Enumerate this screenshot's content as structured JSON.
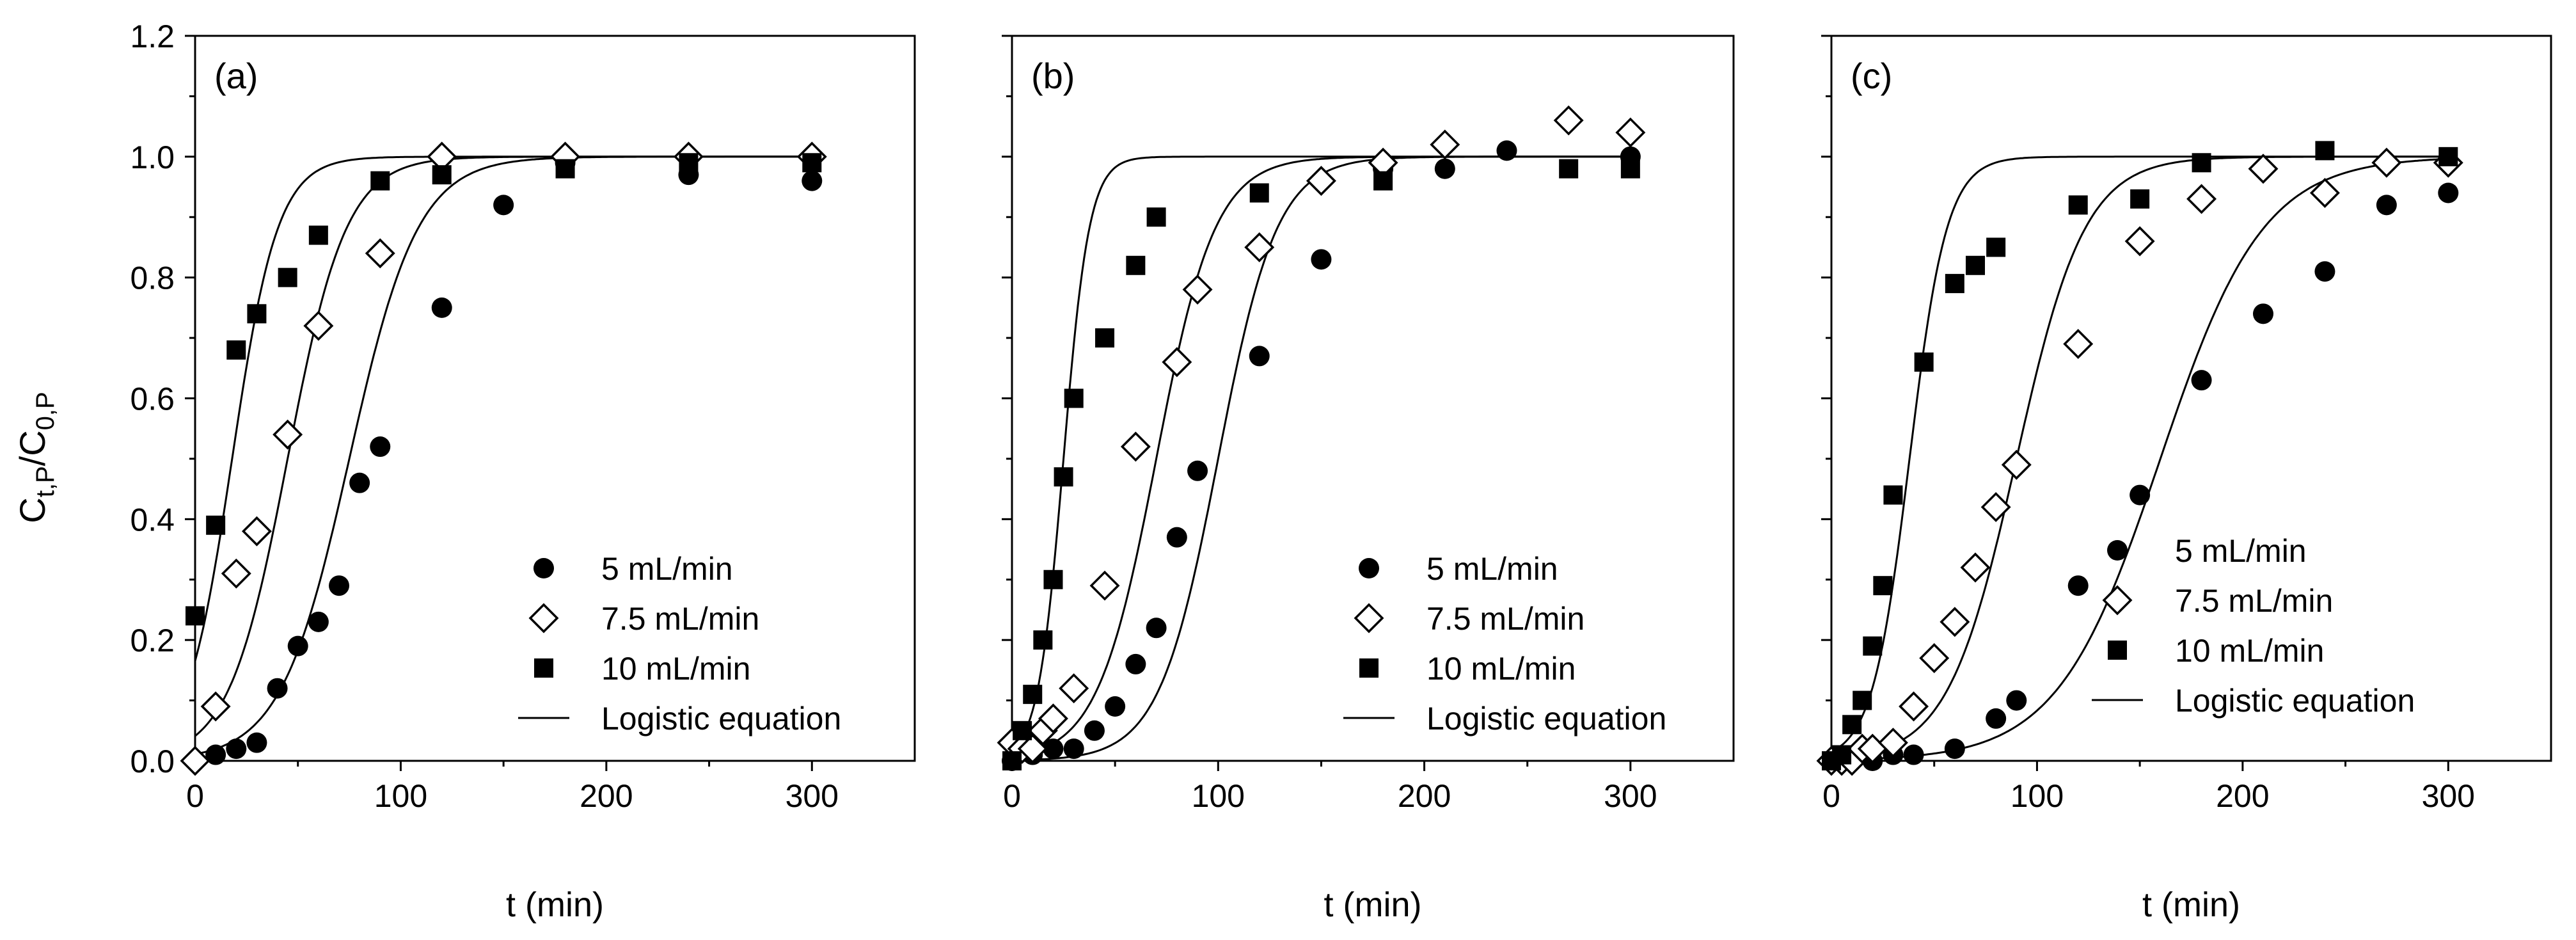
{
  "y_axis_label": {
    "main": "C",
    "sub1": "t,P",
    "mid": "/C",
    "sub2": "0,P"
  },
  "chart_data": [
    {
      "type": "scatter",
      "panel_label": "(a)",
      "xlabel": "t (min)",
      "ylabel": "Ct,P/C0,P",
      "xlim": [
        0,
        350
      ],
      "ylim": [
        0,
        1.2
      ],
      "xticks": [
        0,
        100,
        200,
        300
      ],
      "yticks": [
        0.0,
        0.2,
        0.4,
        0.6,
        0.8,
        1.0,
        1.2
      ],
      "ytick_labels": [
        "0.0",
        "0.2",
        "0.4",
        "0.6",
        "0.8",
        "1.0",
        "1.2"
      ],
      "legend_position": "bottom-right",
      "series": [
        {
          "name": "5 mL/min",
          "marker": "circle-filled",
          "x": [
            0,
            10,
            20,
            30,
            40,
            50,
            60,
            70,
            80,
            90,
            120,
            150,
            180,
            240,
            300
          ],
          "y": [
            0.0,
            0.01,
            0.02,
            0.03,
            0.12,
            0.19,
            0.23,
            0.29,
            0.46,
            0.52,
            0.75,
            0.92,
            0.99,
            0.97,
            0.96
          ]
        },
        {
          "name": "7.5 mL/min",
          "marker": "diamond-open",
          "x": [
            0,
            10,
            20,
            30,
            45,
            60,
            90,
            120,
            180,
            240,
            300
          ],
          "y": [
            0.0,
            0.09,
            0.31,
            0.38,
            0.54,
            0.72,
            0.84,
            1.0,
            1.0,
            1.0,
            1.0
          ]
        },
        {
          "name": "10 mL/min",
          "marker": "square-filled",
          "x": [
            0,
            10,
            20,
            30,
            45,
            60,
            90,
            120,
            180,
            240,
            300
          ],
          "y": [
            0.24,
            0.39,
            0.68,
            0.74,
            0.8,
            0.87,
            0.96,
            0.97,
            0.98,
            0.99,
            0.99
          ]
        },
        {
          "name": "Logistic equation",
          "marker": "line",
          "curves": [
            {
              "k": 0.06,
              "t50": 75
            },
            {
              "k": 0.07,
              "t50": 45
            },
            {
              "k": 0.09,
              "t50": 18
            }
          ]
        }
      ]
    },
    {
      "type": "scatter",
      "panel_label": "(b)",
      "xlabel": "t (min)",
      "ylabel": "Ct,P/C0,P",
      "xlim": [
        0,
        350
      ],
      "ylim": [
        0,
        1.2
      ],
      "xticks": [
        0,
        100,
        200,
        300
      ],
      "yticks": [
        0.0,
        0.2,
        0.4,
        0.6,
        0.8,
        1.0,
        1.2
      ],
      "ytick_labels": [],
      "legend_position": "bottom-right",
      "series": [
        {
          "name": "5 mL/min",
          "marker": "circle-filled",
          "x": [
            0,
            10,
            20,
            30,
            40,
            50,
            60,
            70,
            80,
            90,
            120,
            150,
            180,
            210,
            240,
            300
          ],
          "y": [
            0.0,
            0.01,
            0.02,
            0.02,
            0.05,
            0.09,
            0.16,
            0.22,
            0.37,
            0.48,
            0.67,
            0.83,
            0.98,
            0.98,
            1.01,
            1.0
          ]
        },
        {
          "name": "7.5 mL/min",
          "marker": "diamond-open",
          "x": [
            0,
            5,
            10,
            15,
            20,
            30,
            45,
            60,
            80,
            90,
            120,
            150,
            180,
            210,
            270,
            300
          ],
          "y": [
            0.03,
            0.02,
            0.02,
            0.05,
            0.07,
            0.12,
            0.29,
            0.52,
            0.66,
            0.78,
            0.85,
            0.96,
            0.99,
            1.02,
            1.06,
            1.04
          ]
        },
        {
          "name": "10 mL/min",
          "marker": "square-filled",
          "x": [
            0,
            5,
            10,
            15,
            20,
            25,
            30,
            45,
            60,
            70,
            120,
            180,
            270,
            300
          ],
          "y": [
            0.0,
            0.05,
            0.11,
            0.2,
            0.3,
            0.47,
            0.6,
            0.7,
            0.82,
            0.9,
            0.94,
            0.96,
            0.98,
            0.98
          ]
        },
        {
          "name": "Logistic equation",
          "marker": "line",
          "curves": [
            {
              "k": 0.07,
              "t50": 100
            },
            {
              "k": 0.07,
              "t50": 70
            },
            {
              "k": 0.16,
              "t50": 25
            }
          ]
        }
      ]
    },
    {
      "type": "scatter",
      "panel_label": "(c)",
      "xlabel": "t (min)",
      "ylabel": "Ct,P/C0,P",
      "xlim": [
        0,
        350
      ],
      "ylim": [
        0,
        1.2
      ],
      "xticks": [
        0,
        100,
        200,
        300
      ],
      "yticks": [
        0.0,
        0.2,
        0.4,
        0.6,
        0.8,
        1.0,
        1.2
      ],
      "ytick_labels": [],
      "legend_position": "bottom-right",
      "series": [
        {
          "name": "5 mL/min",
          "marker": "circle-filled",
          "x": [
            0,
            10,
            20,
            30,
            40,
            60,
            80,
            90,
            120,
            150,
            180,
            210,
            240,
            270,
            300
          ],
          "y": [
            0.0,
            0.0,
            0.0,
            0.01,
            0.01,
            0.02,
            0.07,
            0.1,
            0.29,
            0.44,
            0.63,
            0.74,
            0.81,
            0.92,
            0.94
          ]
        },
        {
          "name": "7.5 mL/min",
          "marker": "diamond-open",
          "x": [
            0,
            5,
            10,
            15,
            20,
            30,
            40,
            50,
            60,
            70,
            80,
            90,
            120,
            150,
            180,
            210,
            240,
            270,
            300
          ],
          "y": [
            0.0,
            0.0,
            0.0,
            0.02,
            0.02,
            0.03,
            0.09,
            0.17,
            0.23,
            0.32,
            0.42,
            0.49,
            0.69,
            0.86,
            0.93,
            0.98,
            0.94,
            0.99,
            0.99
          ]
        },
        {
          "name": "10 mL/min",
          "marker": "square-filled",
          "x": [
            0,
            5,
            10,
            15,
            20,
            25,
            30,
            45,
            60,
            70,
            80,
            120,
            150,
            180,
            240,
            300
          ],
          "y": [
            0.0,
            0.01,
            0.06,
            0.1,
            0.19,
            0.29,
            0.44,
            0.66,
            0.79,
            0.82,
            0.85,
            0.92,
            0.93,
            0.99,
            1.01,
            1.0
          ]
        },
        {
          "name": "Logistic equation",
          "marker": "line",
          "curves": [
            {
              "k": 0.04,
              "t50": 160
            },
            {
              "k": 0.06,
              "t50": 90
            },
            {
              "k": 0.11,
              "t50": 38
            }
          ]
        }
      ]
    }
  ]
}
